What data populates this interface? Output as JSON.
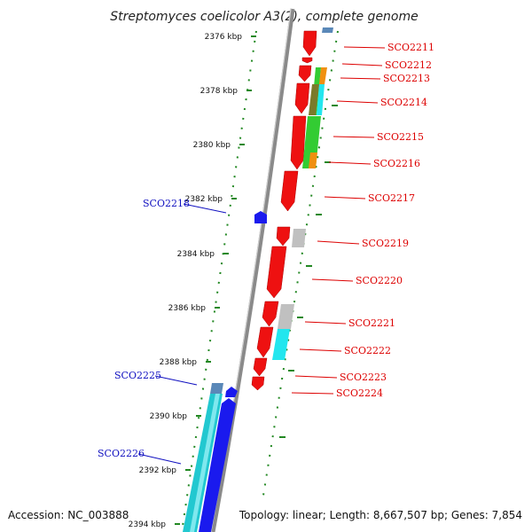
{
  "title": "Streptomyces coelicolor A3(2), complete genome",
  "accession": "Accession: NC_003888",
  "summary": "Topology: linear; Length: 8,667,507 bp; Genes: 7,854",
  "colors": {
    "backbone": "#8a8a8a",
    "dots": "#228822",
    "forward_gene": "#ee1111",
    "reverse_gene": "#1a1aee",
    "label_forward": "#dd0000",
    "label_reverse": "#1010c0",
    "teal": "#22c8d0",
    "cyan": "#22e6ee",
    "steelblue": "#5a88b8",
    "green": "#33cc33",
    "olive": "#7a7a2a",
    "orange": "#f09010",
    "gray": "#c0c0c0"
  },
  "scale_labels": [
    "2376 kbp",
    "2378 kbp",
    "2380 kbp",
    "2382 kbp",
    "2384 kbp",
    "2386 kbp",
    "2388 kbp",
    "2390 kbp",
    "2392 kbp",
    "2394 kbp"
  ],
  "genes_right": [
    "SCO2211",
    "SCO2212",
    "SCO2213",
    "SCO2214",
    "SCO2215",
    "SCO2216",
    "SCO2217",
    "SCO2219",
    "SCO2220",
    "SCO2221",
    "SCO2222",
    "SCO2223",
    "SCO2224"
  ],
  "genes_left": [
    "SCO2218",
    "SCO2225",
    "SCO2226"
  ]
}
